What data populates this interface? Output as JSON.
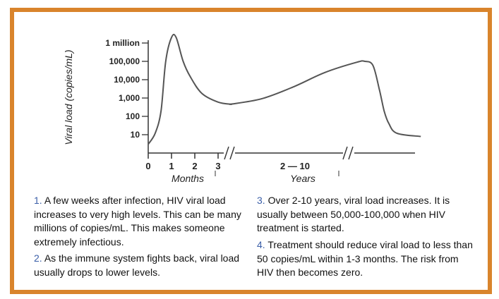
{
  "colors": {
    "frame": "#d9842c",
    "curve": "#555555",
    "number": "#3b5fa8",
    "text": "#111111"
  },
  "chart_data": {
    "type": "line",
    "title": "",
    "ylabel": "Viral load (copies/mL)",
    "yscale": "log",
    "yticks": [
      {
        "value": 10,
        "label": "10"
      },
      {
        "value": 100,
        "label": "100"
      },
      {
        "value": 1000,
        "label": "1,000"
      },
      {
        "value": 10000,
        "label": "10,000"
      },
      {
        "value": 100000,
        "label": "100,000"
      },
      {
        "value": 1000000,
        "label": "1 million"
      }
    ],
    "x_segments": [
      {
        "unit_label": "Months",
        "ticks": [
          "0",
          "1",
          "2",
          "3"
        ]
      },
      {
        "unit_label": "Years",
        "range_label": "2 — 10"
      }
    ],
    "series": [
      {
        "phase": "months",
        "points": [
          [
            0,
            3
          ],
          [
            0.3,
            12
          ],
          [
            0.55,
            200
          ],
          [
            0.75,
            100000
          ],
          [
            1,
            2000000
          ],
          [
            1.2,
            2000000
          ],
          [
            1.5,
            100000
          ],
          [
            1.8,
            15000
          ],
          [
            2.3,
            1800
          ],
          [
            3,
            600
          ],
          [
            3.6,
            450
          ]
        ]
      },
      {
        "phase": "years",
        "points": [
          [
            1,
            450
          ],
          [
            3,
            900
          ],
          [
            5,
            4000
          ],
          [
            7,
            25000
          ],
          [
            9,
            90000
          ],
          [
            9.5,
            100000
          ],
          [
            10,
            60000
          ],
          [
            10.4,
            3000
          ],
          [
            10.7,
            200
          ],
          [
            11,
            40
          ],
          [
            11.5,
            12
          ],
          [
            13,
            8
          ]
        ]
      }
    ]
  },
  "captions": [
    {
      "number": "1.",
      "text": "A few weeks after infection, HIV viral load increases to very high levels. This can be many millions of copies/mL. This makes someone extremely infectious."
    },
    {
      "number": "2.",
      "text": "As the immune system fights back, viral load usually drops to lower levels."
    },
    {
      "number": "3.",
      "text": "Over 2-10 years, viral load increases. It is usually between 50,000-100,000 when HIV treatment is started."
    },
    {
      "number": "4.",
      "text": "Treatment should reduce viral load to less than 50 copies/mL within 1-3 months. The risk from HIV then becomes zero."
    }
  ]
}
